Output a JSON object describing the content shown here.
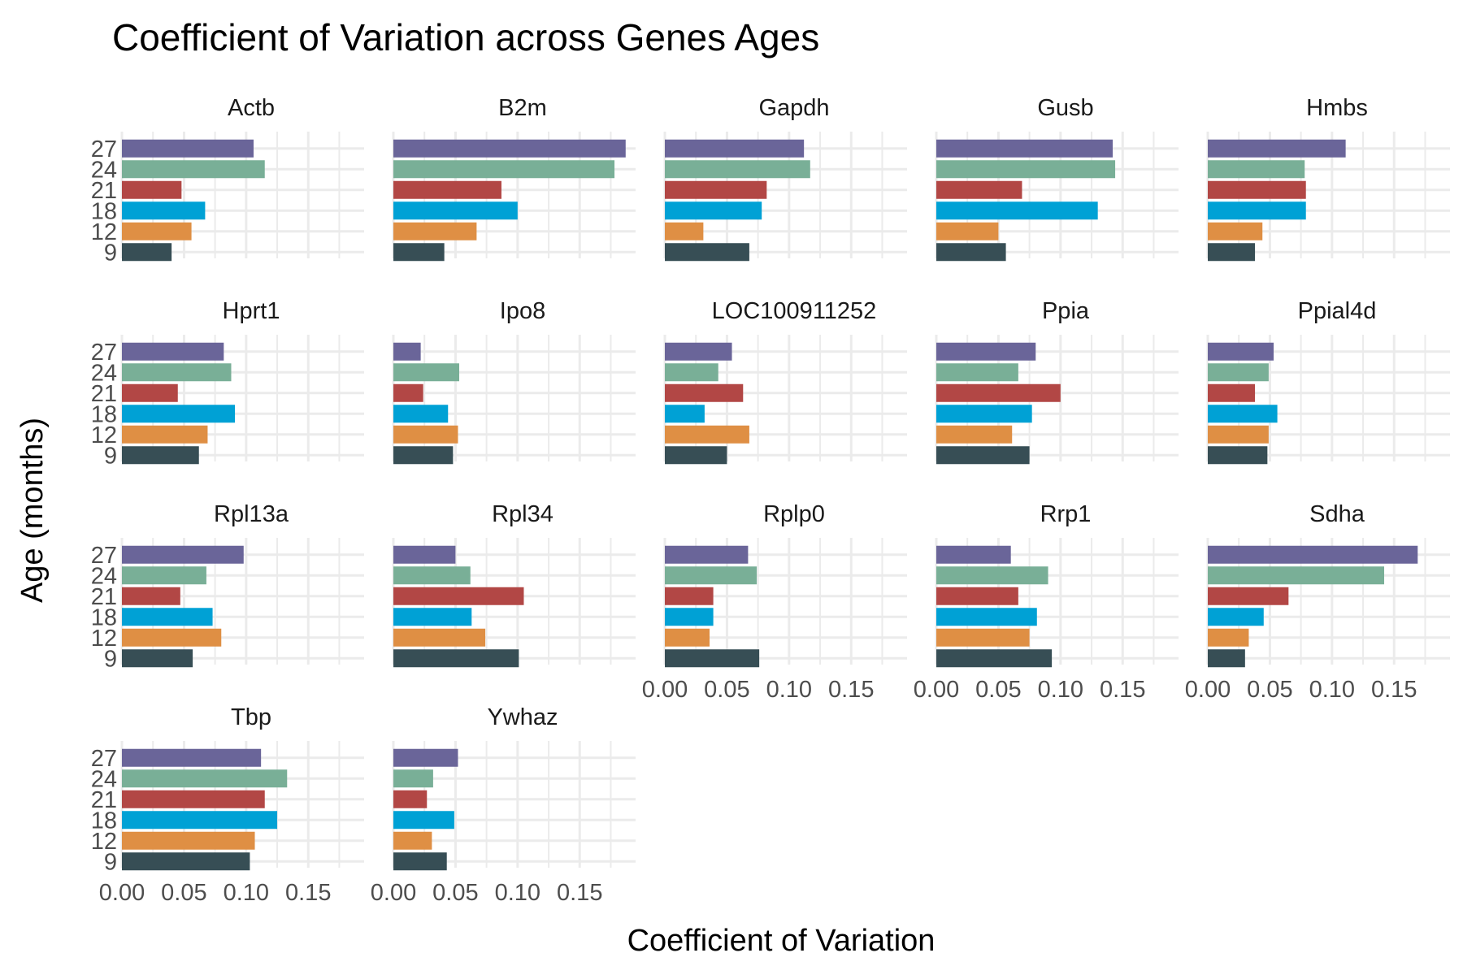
{
  "chart_data": {
    "type": "bar",
    "orientation": "horizontal",
    "layout": "facet-grid",
    "title": "Coefficient of Variation across Genes Ages",
    "xlabel": "Coefficient of Variation",
    "ylabel": "Age (months)",
    "xlim": [
      0,
      0.195
    ],
    "x_ticks": [
      "0.00",
      "0.05",
      "0.10",
      "0.15"
    ],
    "grid": true,
    "legend": "none",
    "categories": [
      "27",
      "24",
      "21",
      "18",
      "12",
      "9"
    ],
    "age_colors": {
      "27": "#6a6599",
      "24": "#79af97",
      "21": "#b24745",
      "18": "#00a1d5",
      "12": "#df8f44",
      "9": "#374e55"
    },
    "facets": [
      {
        "gene": "Actb",
        "values": {
          "27": 0.106,
          "24": 0.115,
          "21": 0.048,
          "18": 0.067,
          "12": 0.056,
          "9": 0.04
        }
      },
      {
        "gene": "B2m",
        "values": {
          "27": 0.187,
          "24": 0.178,
          "21": 0.087,
          "18": 0.1,
          "12": 0.067,
          "9": 0.041
        }
      },
      {
        "gene": "Gapdh",
        "values": {
          "27": 0.112,
          "24": 0.117,
          "21": 0.082,
          "18": 0.078,
          "12": 0.031,
          "9": 0.068
        }
      },
      {
        "gene": "Gusb",
        "values": {
          "27": 0.142,
          "24": 0.144,
          "21": 0.069,
          "18": 0.13,
          "12": 0.05,
          "9": 0.056
        }
      },
      {
        "gene": "Hmbs",
        "values": {
          "27": 0.111,
          "24": 0.078,
          "21": 0.079,
          "18": 0.079,
          "12": 0.044,
          "9": 0.038
        }
      },
      {
        "gene": "Hprt1",
        "values": {
          "27": 0.082,
          "24": 0.088,
          "21": 0.045,
          "18": 0.091,
          "12": 0.069,
          "9": 0.062
        }
      },
      {
        "gene": "Ipo8",
        "values": {
          "27": 0.022,
          "24": 0.053,
          "21": 0.024,
          "18": 0.044,
          "12": 0.052,
          "9": 0.048
        }
      },
      {
        "gene": "LOC100911252",
        "values": {
          "27": 0.054,
          "24": 0.043,
          "21": 0.063,
          "18": 0.032,
          "12": 0.068,
          "9": 0.05
        }
      },
      {
        "gene": "Ppia",
        "values": {
          "27": 0.08,
          "24": 0.066,
          "21": 0.1,
          "18": 0.077,
          "12": 0.061,
          "9": 0.075
        }
      },
      {
        "gene": "Ppial4d",
        "values": {
          "27": 0.053,
          "24": 0.049,
          "21": 0.038,
          "18": 0.056,
          "12": 0.049,
          "9": 0.048
        }
      },
      {
        "gene": "Rpl13a",
        "values": {
          "27": 0.098,
          "24": 0.068,
          "21": 0.047,
          "18": 0.073,
          "12": 0.08,
          "9": 0.057
        }
      },
      {
        "gene": "Rpl34",
        "values": {
          "27": 0.05,
          "24": 0.062,
          "21": 0.105,
          "18": 0.063,
          "12": 0.074,
          "9": 0.101
        }
      },
      {
        "gene": "Rplp0",
        "values": {
          "27": 0.067,
          "24": 0.074,
          "21": 0.039,
          "18": 0.039,
          "12": 0.036,
          "9": 0.076
        }
      },
      {
        "gene": "Rrp1",
        "values": {
          "27": 0.06,
          "24": 0.09,
          "21": 0.066,
          "18": 0.081,
          "12": 0.075,
          "9": 0.093
        }
      },
      {
        "gene": "Sdha",
        "values": {
          "27": 0.169,
          "24": 0.142,
          "21": 0.065,
          "18": 0.045,
          "12": 0.033,
          "9": 0.03
        }
      },
      {
        "gene": "Tbp",
        "values": {
          "27": 0.112,
          "24": 0.133,
          "21": 0.115,
          "18": 0.125,
          "12": 0.107,
          "9": 0.103
        }
      },
      {
        "gene": "Ywhaz",
        "values": {
          "27": 0.052,
          "24": 0.032,
          "21": 0.027,
          "18": 0.049,
          "12": 0.031,
          "9": 0.043
        }
      }
    ]
  }
}
